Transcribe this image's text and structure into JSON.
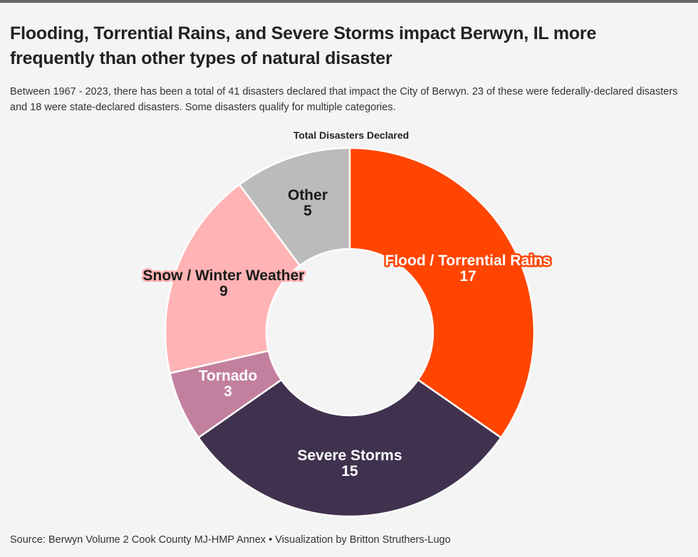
{
  "title": "Flooding, Torrential Rains, and Severe Storms impact Berwyn, IL more frequently than other types of natural disaster",
  "subtitle": "Between 1967 - 2023, there has been a total of 41 disasters declared that impact the City of Berwyn. 23 of these were federally-declared disasters and 18 were state-declared disasters. Some disasters qualify for multiple categories.",
  "source": "Source: Berwyn Volume 2 Cook County MJ-HMP Annex • Visualization by Britton Struthers-Lugo",
  "chart_data": {
    "type": "pie",
    "variant": "donut",
    "title": "Total Disasters Declared",
    "categories": [
      "Flood / Torrential Rains",
      "Severe Storms",
      "Tornado",
      "Snow / Winter Weather",
      "Other"
    ],
    "values": [
      17,
      15,
      3,
      9,
      5
    ],
    "colors": [
      "#ff4500",
      "#40324e",
      "#c3809e",
      "#ffb3b4",
      "#bbbbbb"
    ],
    "label_colors": [
      "#ffffff",
      "#ffffff",
      "#ffffff",
      "#1a1a1a",
      "#1a1a1a"
    ],
    "label_outline_colors": [
      "#ff4500",
      "#40324e",
      "#c3809e",
      "#ffb3b4",
      "#bbbbbb"
    ],
    "start": "12 o'clock",
    "direction": "clockwise"
  }
}
